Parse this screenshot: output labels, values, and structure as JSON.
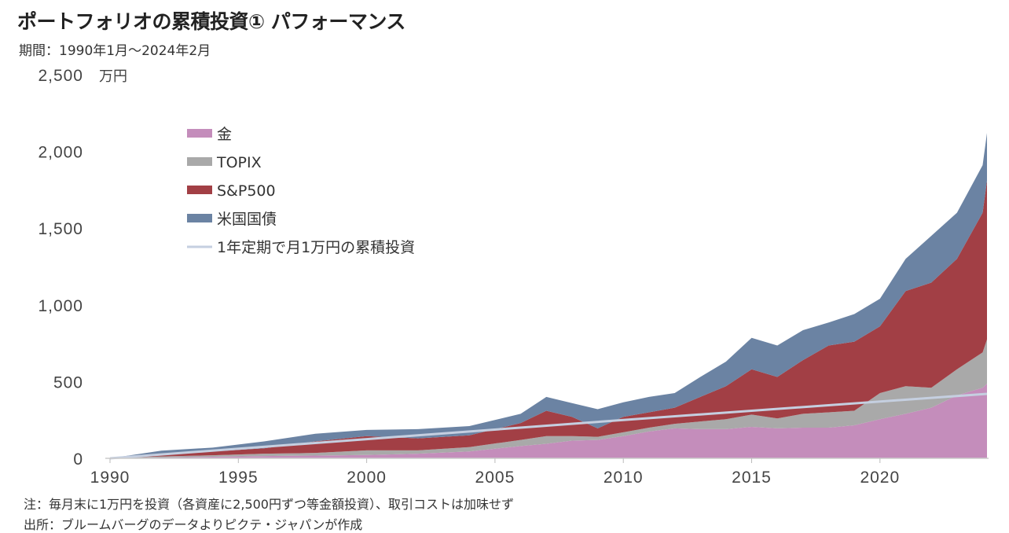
{
  "title": "ポートフォリオの累積投資① パフォーマンス",
  "subtitle": "期間：1990年1月～2024年2月",
  "notes": [
    "注：毎月末に1万円を投資（各資産に2,500円ずつ等金額投資）、取引コストは加味せず",
    "出所：ブルームバーグのデータよりピクテ・ジャパンが作成"
  ],
  "chart_data": {
    "type": "area",
    "stacked": true,
    "title": "ポートフォリオの累積投資① パフォーマンス",
    "ylabel": "万円",
    "xlabel": "",
    "ylim": [
      0,
      2500
    ],
    "xlim": [
      1990,
      2024.17
    ],
    "yticks": [
      "0",
      "500",
      "1,000",
      "1,500",
      "2,000",
      "2,500"
    ],
    "yticks_values": [
      0,
      500,
      1000,
      1500,
      2000,
      2500
    ],
    "xticks": [
      "1990",
      "1995",
      "2000",
      "2005",
      "2010",
      "2015",
      "2020"
    ],
    "xticks_values": [
      1990,
      1995,
      2000,
      2005,
      2010,
      2015,
      2020
    ],
    "legend_position": "top-left",
    "grid": false,
    "x": [
      1990,
      1992,
      1994,
      1996,
      1998,
      2000,
      2002,
      2004,
      2006,
      2007,
      2008,
      2009,
      2010,
      2011,
      2012,
      2013,
      2014,
      2015,
      2016,
      2017,
      2018,
      2019,
      2020,
      2021,
      2022,
      2023,
      2024,
      2024.17
    ],
    "series": [
      {
        "name": "金",
        "color": "#c48dbb",
        "values": [
          0,
          5,
          10,
          15,
          18,
          22,
          30,
          45,
          80,
          95,
          115,
          120,
          145,
          175,
          195,
          190,
          190,
          205,
          195,
          200,
          200,
          215,
          255,
          290,
          330,
          410,
          460,
          487
        ]
      },
      {
        "name": "TOPIX",
        "color": "#a9a9a9",
        "values": [
          0,
          7,
          10,
          15,
          17,
          30,
          22,
          28,
          40,
          50,
          30,
          20,
          25,
          25,
          30,
          50,
          65,
          80,
          65,
          90,
          100,
          95,
          170,
          180,
          130,
          170,
          230,
          288
        ]
      },
      {
        "name": "S&P500",
        "color": "#a23f45",
        "values": [
          0,
          18,
          25,
          35,
          75,
          93,
          78,
          77,
          110,
          165,
          125,
          55,
          100,
          100,
          105,
          160,
          215,
          295,
          270,
          350,
          435,
          450,
          435,
          620,
          685,
          720,
          910,
          1035
        ]
      },
      {
        "name": "米国国債",
        "color": "#6b83a3",
        "values": [
          0,
          20,
          25,
          45,
          50,
          40,
          60,
          60,
          60,
          90,
          90,
          125,
          95,
          100,
          95,
          130,
          160,
          205,
          205,
          195,
          150,
          180,
          180,
          210,
          305,
          300,
          310,
          310
        ]
      }
    ],
    "line": {
      "name": "1年定期で月1万円の累積投資",
      "color": "#c5cfe0",
      "x": [
        1990,
        2000,
        2010,
        2024.17
      ],
      "values": [
        0,
        125,
        250,
        420
      ]
    }
  }
}
